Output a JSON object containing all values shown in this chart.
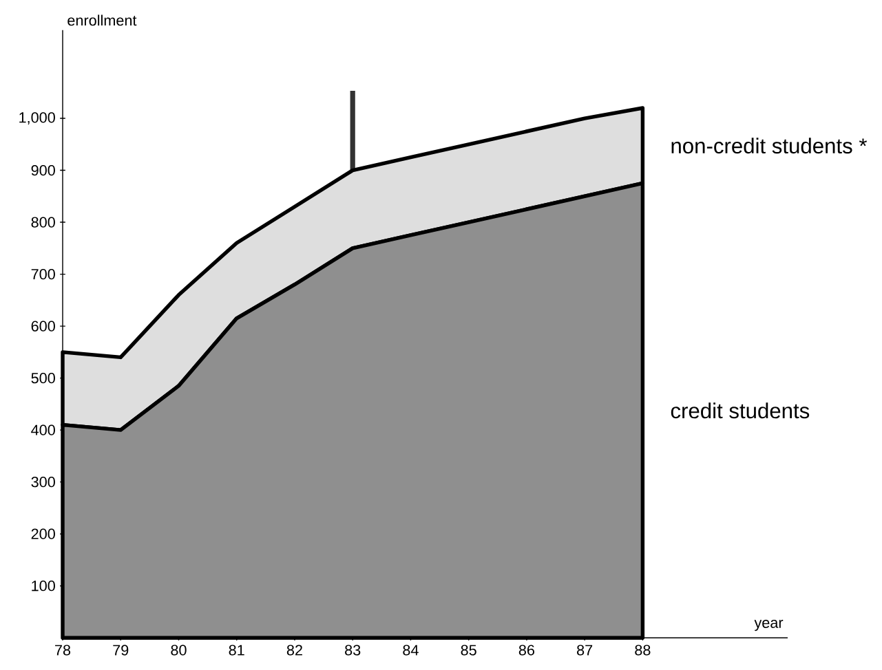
{
  "chart_data": {
    "type": "area",
    "stacked": true,
    "xlabel": "year",
    "ylabel": "enrollment",
    "x": [
      78,
      79,
      80,
      81,
      82,
      83,
      84,
      85,
      86,
      87,
      88
    ],
    "series": [
      {
        "name": "credit students",
        "color": "#8f8f8f",
        "values": [
          410,
          400,
          485,
          615,
          680,
          750,
          775,
          800,
          825,
          850,
          875
        ]
      },
      {
        "name": "non-credit students *",
        "color": "#dedede",
        "values": [
          140,
          140,
          175,
          145,
          150,
          150,
          150,
          150,
          150,
          150,
          145
        ]
      }
    ],
    "xlim": [
      78,
      90.5
    ],
    "ylim": [
      0,
      1170
    ],
    "xticks": [
      {
        "value": 78,
        "label": "78"
      },
      {
        "value": 79,
        "label": "79"
      },
      {
        "value": 80,
        "label": "80"
      },
      {
        "value": 81,
        "label": "81"
      },
      {
        "value": 82,
        "label": "82"
      },
      {
        "value": 83,
        "label": "83"
      },
      {
        "value": 84,
        "label": "84"
      },
      {
        "value": 85,
        "label": "85"
      },
      {
        "value": 86,
        "label": "86"
      },
      {
        "value": 87,
        "label": "87"
      },
      {
        "value": 88,
        "label": "88"
      }
    ],
    "yticks": [
      {
        "value": 100,
        "label": "100"
      },
      {
        "value": 200,
        "label": "200"
      },
      {
        "value": 300,
        "label": "300"
      },
      {
        "value": 400,
        "label": "400"
      },
      {
        "value": 500,
        "label": "500"
      },
      {
        "value": 600,
        "label": "600"
      },
      {
        "value": 700,
        "label": "700"
      },
      {
        "value": 800,
        "label": "800"
      },
      {
        "value": 900,
        "label": "900"
      },
      {
        "value": 1000,
        "label": "1,000"
      }
    ],
    "ref_lines": [
      {
        "axis": "x",
        "value": 83,
        "color": "#333333"
      }
    ],
    "grid": false
  }
}
